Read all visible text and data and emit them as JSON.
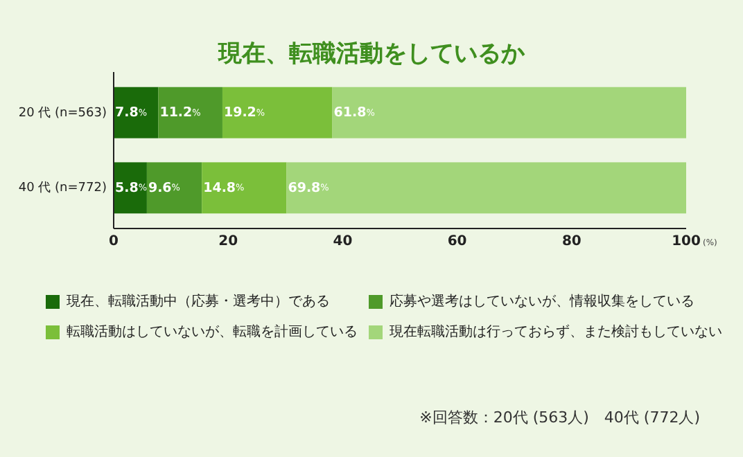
{
  "chart_data": {
    "type": "bar",
    "orientation": "horizontal",
    "stacked": true,
    "title": "現在、転職活動をしているか",
    "xlabel": "(%)",
    "categories": [
      "20 代 (n=563)",
      "40 代 (n=772)"
    ],
    "series": [
      {
        "name": "現在、転職活動中（応募・選考中）である",
        "color": "#1a6b0a",
        "values": [
          7.8,
          5.8
        ],
        "value_labels": [
          "7.8%",
          "5.8%"
        ]
      },
      {
        "name": "応募や選考はしていないが、情報収集をしている",
        "color": "#4f9a2a",
        "values": [
          11.2,
          9.6
        ],
        "value_labels": [
          "11.2%",
          "9.6%"
        ]
      },
      {
        "name": "転職活動はしていないが、転職を計画している",
        "color": "#7bbf3a",
        "values": [
          19.2,
          14.8
        ],
        "value_labels": [
          "19.2%",
          "14.8%"
        ]
      },
      {
        "name": "現在転職活動は行っておらず、また検討もしていない",
        "color": "#a3d67a",
        "values": [
          61.8,
          69.8
        ],
        "value_labels": [
          "61.8%",
          "69.8%"
        ]
      }
    ],
    "xlim": [
      0,
      100
    ],
    "xticks": [
      0,
      20,
      40,
      60,
      80,
      100
    ],
    "legend": "bottom",
    "annotations": [
      "※回答数：20代 (563人)　40代 (772人)"
    ]
  }
}
